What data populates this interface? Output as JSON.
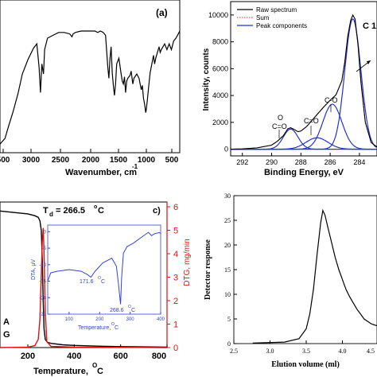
{
  "chart_data": [
    {
      "panel": "a",
      "type": "line",
      "label": "(a)",
      "xlabel": "Wavenumber, cm",
      "xlabel_superscript": "-1",
      "x_ticks": [
        "500",
        "3000",
        "2500",
        "2000",
        "1500",
        "1000",
        "500"
      ],
      "xlim": [
        3650,
        430
      ],
      "series": [
        {
          "color": "#000000",
          "x": [
            3650,
            3560,
            3500,
            3420,
            3330,
            3250,
            3150,
            3050,
            2990,
            2950,
            2925,
            2900,
            2870,
            2850,
            2800,
            2700,
            2600,
            2500,
            2400,
            2360,
            2340,
            2300,
            2200,
            2100,
            2000,
            1950,
            1900,
            1850,
            1800,
            1760,
            1720,
            1700,
            1680,
            1660,
            1640,
            1620,
            1600,
            1580,
            1560,
            1520,
            1480,
            1460,
            1440,
            1420,
            1400,
            1380,
            1360,
            1320,
            1300,
            1270,
            1250,
            1200,
            1160,
            1120,
            1100,
            1080,
            1060,
            1040,
            1030,
            1010,
            990,
            960,
            900,
            880,
            860,
            800,
            780,
            760,
            700,
            660,
            620,
            580,
            540,
            500,
            470,
            430
          ],
          "y": [
            6,
            10,
            18,
            28,
            41,
            55,
            65,
            73,
            76,
            60,
            42,
            62,
            55,
            72,
            80,
            82,
            84,
            84,
            83,
            81,
            83,
            84,
            85,
            85,
            85,
            85,
            84,
            85,
            84,
            82,
            60,
            52,
            66,
            74,
            56,
            47,
            40,
            48,
            62,
            66,
            55,
            50,
            48,
            53,
            42,
            50,
            52,
            54,
            57,
            48,
            52,
            55,
            52,
            44,
            47,
            38,
            34,
            28,
            30,
            37,
            45,
            56,
            68,
            62,
            66,
            74,
            70,
            72,
            76,
            72,
            76,
            72,
            78,
            80,
            82,
            85
          ]
        }
      ]
    },
    {
      "panel": "b",
      "type": "line",
      "label": "C 1",
      "xlabel": "Binding Energy, eV",
      "ylabel": "Intensity, counts",
      "xlim": [
        292.8,
        282.8
      ],
      "ylim": [
        -500,
        11000
      ],
      "x_ticks": [
        292,
        290,
        288,
        286,
        284
      ],
      "y_ticks": [
        0,
        2000,
        4000,
        6000,
        8000,
        10000
      ],
      "legend": [
        "Raw spectrum",
        "Sum",
        "Peak components"
      ],
      "legend_position": "top-left",
      "annotations": [
        "O",
        "C=O",
        "C=O",
        "C-O"
      ],
      "series": [
        {
          "name": "Raw spectrum",
          "color": "#000000",
          "x": [
            292.8,
            292.0,
            291.0,
            290.0,
            289.6,
            289.2,
            288.9,
            288.7,
            288.5,
            288.2,
            288.0,
            287.6,
            287.2,
            286.8,
            286.4,
            286.0,
            285.6,
            285.2,
            285.0,
            284.8,
            284.6,
            284.45,
            284.3,
            284.1,
            283.9,
            283.6,
            283.2,
            282.8
          ],
          "y": [
            0,
            20,
            100,
            300,
            600,
            1000,
            1520,
            1600,
            1500,
            1300,
            1350,
            1700,
            2200,
            2700,
            3200,
            3650,
            4050,
            5100,
            6500,
            8400,
            9600,
            10000,
            9700,
            7800,
            5000,
            2000,
            500,
            150
          ]
        },
        {
          "name": "Sum",
          "color": "#cc3333",
          "x": [
            292.8,
            292.0,
            291.0,
            290.0,
            289.6,
            289.2,
            288.9,
            288.7,
            288.5,
            288.2,
            288.0,
            287.6,
            287.2,
            286.8,
            286.4,
            286.0,
            285.6,
            285.2,
            285.0,
            284.8,
            284.6,
            284.45,
            284.3,
            284.1,
            283.9,
            283.6,
            283.2,
            282.8
          ],
          "y": [
            0,
            20,
            100,
            300,
            600,
            1000,
            1500,
            1600,
            1500,
            1300,
            1350,
            1700,
            2200,
            2700,
            3200,
            3650,
            4050,
            5100,
            6500,
            8400,
            9600,
            10000,
            9700,
            7800,
            5000,
            2000,
            500,
            150
          ]
        },
        {
          "name": "Peak components",
          "color": "#2233cc",
          "peaks": [
            {
              "center": 284.45,
              "height": 9700,
              "width": 0.55
            },
            {
              "center": 285.85,
              "height": 3350,
              "width": 0.65
            },
            {
              "center": 286.9,
              "height": 850,
              "width": 0.75
            },
            {
              "center": 288.7,
              "height": 1500,
              "width": 0.5
            }
          ]
        }
      ]
    },
    {
      "panel": "c",
      "type": "line",
      "label": "c)",
      "xlabel": "Temperature,",
      "xlabel_unit": "C",
      "xlabel_superscript": "O",
      "ylabel_right": "DTG, mg/min",
      "x_ticks": [
        200,
        400,
        600,
        800
      ],
      "xlim": [
        80,
        800
      ],
      "y_right_ticks": [
        0,
        1,
        2,
        3,
        4,
        5,
        6
      ],
      "y_right_lim": [
        0,
        6
      ],
      "annotation_main": "T",
      "annotation_sub": "d",
      "annotation_value": "= 266.5",
      "annotation_superscript": "o",
      "annotation_unit": "C",
      "legend_fragments": [
        "A",
        "G"
      ],
      "series": [
        {
          "name": "TG",
          "color": "#000000",
          "x": [
            80,
            150,
            200,
            230,
            245,
            252,
            258,
            262,
            266,
            270,
            275,
            285,
            300,
            350,
            400,
            500,
            600,
            700,
            800
          ],
          "y": [
            5.82,
            5.75,
            5.7,
            5.62,
            5.55,
            5.4,
            5.0,
            3.8,
            2.0,
            0.8,
            0.35,
            0.22,
            0.18,
            0.12,
            0.09,
            0.06,
            0.04,
            0.03,
            0.02
          ]
        },
        {
          "name": "DTG",
          "color": "#dd1111",
          "x": [
            80,
            200,
            230,
            245,
            252,
            258,
            262,
            266.5,
            270,
            275,
            282,
            300,
            400,
            600,
            800
          ],
          "y": [
            0.0,
            0.02,
            0.08,
            0.35,
            1.2,
            3.1,
            4.5,
            5.1,
            4.0,
            1.5,
            0.25,
            0.05,
            0.02,
            0.01,
            0.0
          ]
        }
      ],
      "inset": {
        "type": "line",
        "xlabel": "Temperature,",
        "xlabel_unit": "C",
        "xlabel_superscript": "O",
        "ylabel": "DTA, μV",
        "x_ticks": [
          100,
          200,
          300,
          400
        ],
        "xlim": [
          30,
          400
        ],
        "y_ticks": [
          -25,
          -20,
          -15,
          -10,
          -5,
          0
        ],
        "ylim": [
          -25,
          2
        ],
        "annotations": [
          {
            "text": "171.6",
            "superscript": "O",
            "unit": "C"
          },
          {
            "text": "268.6",
            "superscript": "O",
            "unit": "C"
          }
        ],
        "series": [
          {
            "color": "#3344cc",
            "x": [
              30,
              40,
              60,
              100,
              140,
              160,
              171.6,
              185,
              210,
              240,
              255,
              262,
              268.6,
              272,
              278,
              290,
              310,
              340,
              360,
              370,
              380,
              395,
              400
            ],
            "y": [
              -15,
              -12.5,
              -12,
              -11.5,
              -12,
              -13,
              -13.8,
              -12,
              -9.5,
              -8,
              -10.5,
              -16,
              -22,
              -14,
              -6.5,
              -4.5,
              -3.5,
              -1.5,
              -0.2,
              -1.2,
              -0.6,
              -0.3,
              -0.5
            ]
          }
        ]
      }
    },
    {
      "panel": "d",
      "type": "line",
      "xlabel": "Elution volume (ml)",
      "ylabel": "Detector response",
      "xlim": [
        2.5,
        4.5
      ],
      "ylim": [
        0,
        30
      ],
      "x_ticks": [
        "2.5",
        "3.0",
        "3.5",
        "4.0",
        "4.5"
      ],
      "y_ticks": [
        0,
        5,
        10,
        15,
        20,
        25,
        30
      ],
      "series": [
        {
          "color": "#000000",
          "x": [
            2.76,
            3.2,
            3.4,
            3.5,
            3.55,
            3.6,
            3.65,
            3.7,
            3.73,
            3.76,
            3.8,
            3.85,
            3.9,
            3.95,
            4.0,
            4.05,
            4.1,
            4.2,
            4.3,
            4.4,
            4.5
          ],
          "y": [
            0.1,
            0.3,
            1.0,
            3.0,
            6.0,
            11.0,
            18.0,
            24.5,
            27.0,
            26.0,
            23.5,
            20.5,
            17.5,
            15.0,
            13.0,
            11.0,
            9.5,
            7.0,
            5.0,
            4.0,
            3.5
          ]
        }
      ]
    }
  ]
}
